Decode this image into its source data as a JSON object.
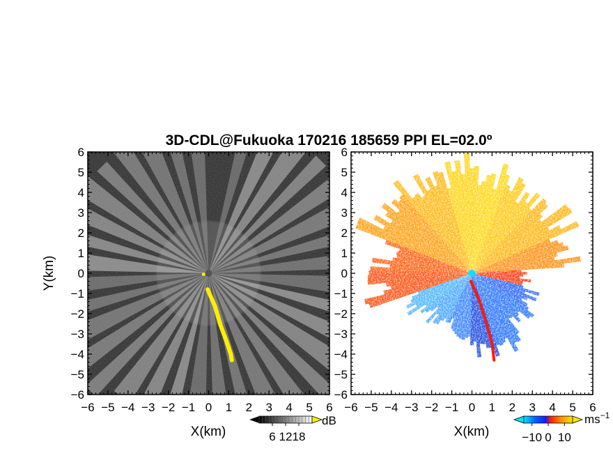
{
  "chart_data": [
    {
      "type": "heatmap",
      "panel": "left",
      "title": "3D-CDL@Fukuoka 170216 185659 PPI EL=02.0º",
      "xlabel": "X(km)",
      "ylabel": "Y(km)",
      "xlim": [
        -6,
        6
      ],
      "ylim": [
        -6,
        6
      ],
      "ticks": [
        -6,
        -5,
        -4,
        -3,
        -2,
        -1,
        0,
        1,
        2,
        3,
        4,
        5,
        6
      ],
      "tick_labels": [
        "−6",
        "−5",
        "−4",
        "−3",
        "−2",
        "−1",
        "0",
        "1",
        "2",
        "3",
        "4",
        "5",
        "6"
      ],
      "quantity": "SNR",
      "colormap": "grayscale",
      "colorbar": {
        "unit": "dB",
        "ticks": [
          6,
          12,
          18
        ],
        "tick_labels": [
          "6",
          "12",
          "18"
        ],
        "colors": [
          "#000000",
          "#ffffff"
        ],
        "overflow_color": "#ffee00"
      },
      "highlight": {
        "color": "#ffee00",
        "path": [
          [
            -0.05,
            -0.8
          ],
          [
            0.3,
            -1.6
          ],
          [
            0.6,
            -2.6
          ],
          [
            0.9,
            -3.4
          ],
          [
            1.1,
            -4.0
          ],
          [
            1.15,
            -4.3
          ]
        ]
      },
      "radar_origin": [
        0,
        0
      ],
      "beam_azimuths_deg": [
        15,
        25,
        35,
        45,
        55,
        65,
        75,
        85,
        95,
        105,
        115,
        125,
        135,
        145,
        155,
        165,
        175,
        185,
        195,
        205,
        215,
        225,
        235,
        245,
        255,
        265,
        275,
        285,
        295,
        305,
        315,
        325,
        335,
        345,
        355
      ]
    },
    {
      "type": "heatmap",
      "panel": "right",
      "xlabel": "X(km)",
      "xlim": [
        -6,
        6
      ],
      "ylim": [
        -6,
        6
      ],
      "ticks": [
        -6,
        -5,
        -4,
        -3,
        -2,
        -1,
        0,
        1,
        2,
        3,
        4,
        5,
        6
      ],
      "tick_labels": [
        "−6",
        "−5",
        "−4",
        "−3",
        "−2",
        "−1",
        "0",
        "1",
        "2",
        "3",
        "4",
        "5",
        "6"
      ],
      "quantity": "radial velocity",
      "colormap": "diverging",
      "colorbar": {
        "unit": "ms",
        "unit_exponent": "−1",
        "ticks": [
          -10,
          0,
          10
        ],
        "tick_labels": [
          "−10",
          "0",
          "10"
        ],
        "colors": [
          "#00e5ff",
          "#0066ff",
          "#1a1aff",
          "#ff2200",
          "#ff9900",
          "#ffe400"
        ]
      },
      "velocity_sectors": [
        {
          "azimuth_from_deg": 290,
          "azimuth_to_deg": 360,
          "color": "#ffb300"
        },
        {
          "azimuth_from_deg": 0,
          "azimuth_to_deg": 60,
          "color": "#ffcc00"
        },
        {
          "azimuth_from_deg": 60,
          "azimuth_to_deg": 85,
          "color": "#ff8c00"
        },
        {
          "azimuth_from_deg": 85,
          "azimuth_to_deg": 100,
          "color": "#ff3300"
        },
        {
          "azimuth_from_deg": 100,
          "azimuth_to_deg": 160,
          "color": "#1e7fff"
        },
        {
          "azimuth_from_deg": 160,
          "azimuth_to_deg": 200,
          "color": "#0a4fe0"
        },
        {
          "azimuth_from_deg": 200,
          "azimuth_to_deg": 250,
          "color": "#3ba7ff"
        },
        {
          "azimuth_from_deg": 250,
          "azimuth_to_deg": 290,
          "color": "#ff4a00"
        }
      ],
      "beam_tip_km": [
        {
          "azimuth_deg": 305,
          "range_km": 6.2,
          "color": "#ff9900"
        },
        {
          "azimuth_deg": 330,
          "range_km": 6.0,
          "color": "#ffb300"
        },
        {
          "azimuth_deg": 355,
          "range_km": 5.8,
          "color": "#ffd000"
        },
        {
          "azimuth_deg": 10,
          "range_km": 5.6,
          "color": "#ffd500"
        },
        {
          "azimuth_deg": 30,
          "range_km": 5.4,
          "color": "#ffc400"
        },
        {
          "azimuth_deg": 55,
          "range_km": 5.6,
          "color": "#ffb000"
        },
        {
          "azimuth_deg": 75,
          "range_km": 5.2,
          "color": "#ff8800"
        },
        {
          "azimuth_deg": 95,
          "range_km": 3.0,
          "color": "#ff2a00"
        },
        {
          "azimuth_deg": 110,
          "range_km": 3.4,
          "color": "#1e5eff"
        },
        {
          "azimuth_deg": 130,
          "range_km": 3.8,
          "color": "#1b6cff"
        },
        {
          "azimuth_deg": 150,
          "range_km": 4.3,
          "color": "#1b6cff"
        },
        {
          "azimuth_deg": 170,
          "range_km": 4.3,
          "color": "#1040e0"
        },
        {
          "azimuth_deg": 190,
          "range_km": 3.2,
          "color": "#2a7bff"
        },
        {
          "azimuth_deg": 220,
          "range_km": 3.2,
          "color": "#3aa0ff"
        },
        {
          "azimuth_deg": 240,
          "range_km": 3.6,
          "color": "#40b0ff"
        },
        {
          "azimuth_deg": 260,
          "range_km": 5.4,
          "color": "#ff4400"
        },
        {
          "azimuth_deg": 280,
          "range_km": 5.0,
          "color": "#ff5500"
        }
      ],
      "red_streak": [
        [
          -0.05,
          -0.4
        ],
        [
          0.35,
          -1.3
        ],
        [
          0.7,
          -2.4
        ],
        [
          1.0,
          -3.5
        ],
        [
          1.1,
          -4.3
        ]
      ]
    }
  ]
}
